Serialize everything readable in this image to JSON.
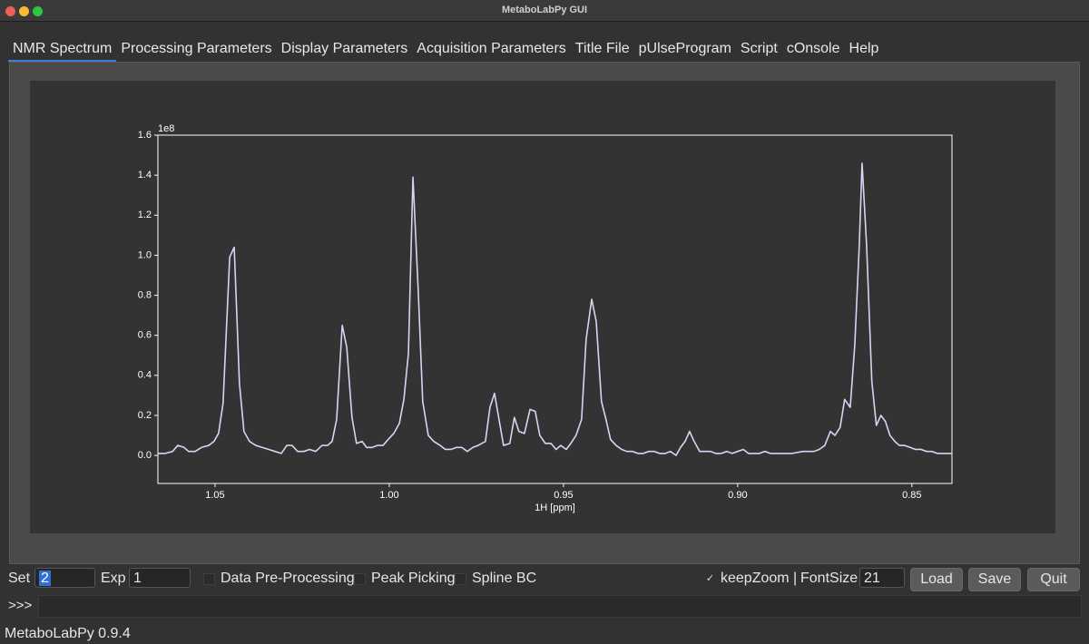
{
  "window": {
    "title": "MetaboLabPy GUI"
  },
  "tabs": [
    "NMR Spectrum",
    "Processing Parameters",
    "Display Parameters",
    "Acquisition Parameters",
    "Title File",
    "pUlseProgram",
    "Script",
    "cOnsole",
    "Help"
  ],
  "chart_data": {
    "type": "line",
    "xlabel": "1H [ppm]",
    "y_offset_label": "1e8",
    "color": "#d8d4f4",
    "axis_color": "#ffffff",
    "xlim": [
      1.0664,
      0.8385
    ],
    "ylim": [
      -0.14,
      1.6
    ],
    "xticks": [
      1.05,
      {
        "value": 1.0,
        "label": "1.00"
      },
      0.95,
      {
        "value": 0.9,
        "label": "0.90"
      },
      0.85
    ],
    "yticks": [
      {
        "value": 0,
        "label": "0.0"
      },
      0.2,
      0.4,
      0.6,
      0.8,
      {
        "value": 1.0,
        "label": "1.0"
      },
      1.2,
      1.4,
      1.6
    ],
    "x": [
      1.0664,
      1.0643,
      1.0622,
      1.0607,
      1.0589,
      1.0576,
      1.0557,
      1.0539,
      1.0518,
      1.0503,
      1.049,
      1.0477,
      1.0458,
      1.0445,
      1.043,
      1.0417,
      1.0401,
      1.0383,
      1.0365,
      1.0346,
      1.0328,
      1.031,
      1.0294,
      1.0279,
      1.0263,
      1.0245,
      1.0229,
      1.0211,
      1.0193,
      1.0177,
      1.0164,
      1.0151,
      1.0135,
      1.0122,
      1.0107,
      1.0094,
      1.0078,
      1.0065,
      1.0049,
      1.0034,
      1.0018,
      1.0003,
      0.9987,
      0.9971,
      0.9958,
      0.9945,
      0.9932,
      0.9917,
      0.9904,
      0.9888,
      0.9872,
      0.9854,
      0.9839,
      0.9823,
      0.9807,
      0.9792,
      0.9776,
      0.976,
      0.9745,
      0.9724,
      0.9711,
      0.9698,
      0.9685,
      0.9672,
      0.9654,
      0.9641,
      0.9628,
      0.9612,
      0.9596,
      0.9581,
      0.9568,
      0.9552,
      0.9536,
      0.9521,
      0.9508,
      0.9492,
      0.9479,
      0.9464,
      0.9448,
      0.9435,
      0.9419,
      0.9406,
      0.9391,
      0.9378,
      0.9365,
      0.9349,
      0.9333,
      0.9318,
      0.9302,
      0.9286,
      0.9271,
      0.9255,
      0.924,
      0.9224,
      0.9208,
      0.9193,
      0.9177,
      0.9164,
      0.9151,
      0.9138,
      0.9125,
      0.9109,
      0.9094,
      0.9078,
      0.9063,
      0.9047,
      0.9031,
      0.9016,
      0.9,
      0.8984,
      0.8969,
      0.8953,
      0.8938,
      0.8922,
      0.8906,
      0.8875,
      0.8844,
      0.8813,
      0.8781,
      0.8766,
      0.875,
      0.8734,
      0.8721,
      0.8706,
      0.8693,
      0.8677,
      0.8664,
      0.8651,
      0.8643,
      0.863,
      0.8615,
      0.8602,
      0.8589,
      0.8576,
      0.8563,
      0.8549,
      0.8536,
      0.8521,
      0.8505,
      0.849,
      0.8474,
      0.8458,
      0.8443,
      0.8427,
      0.8409,
      0.8385
    ],
    "values": [
      0.01,
      0.01,
      0.02,
      0.05,
      0.04,
      0.02,
      0.02,
      0.04,
      0.05,
      0.07,
      0.11,
      0.26,
      0.99,
      1.04,
      0.36,
      0.12,
      0.07,
      0.05,
      0.04,
      0.03,
      0.02,
      0.01,
      0.05,
      0.05,
      0.02,
      0.02,
      0.03,
      0.02,
      0.05,
      0.05,
      0.07,
      0.18,
      0.65,
      0.54,
      0.19,
      0.06,
      0.07,
      0.04,
      0.04,
      0.05,
      0.05,
      0.08,
      0.11,
      0.16,
      0.28,
      0.51,
      1.39,
      0.83,
      0.27,
      0.1,
      0.07,
      0.05,
      0.03,
      0.03,
      0.04,
      0.04,
      0.02,
      0.04,
      0.05,
      0.07,
      0.24,
      0.31,
      0.18,
      0.05,
      0.06,
      0.19,
      0.12,
      0.11,
      0.23,
      0.22,
      0.1,
      0.06,
      0.06,
      0.03,
      0.05,
      0.03,
      0.06,
      0.1,
      0.18,
      0.58,
      0.78,
      0.67,
      0.27,
      0.18,
      0.08,
      0.05,
      0.03,
      0.02,
      0.02,
      0.01,
      0.01,
      0.02,
      0.02,
      0.01,
      0.01,
      0.02,
      0,
      0.04,
      0.07,
      0.12,
      0.07,
      0.02,
      0.02,
      0.02,
      0.01,
      0.01,
      0.02,
      0.01,
      0.02,
      0.03,
      0.01,
      0.01,
      0.01,
      0.02,
      0.01,
      0.01,
      0.01,
      0.02,
      0.02,
      0.03,
      0.05,
      0.12,
      0.1,
      0.14,
      0.28,
      0.24,
      0.55,
      1.05,
      1.46,
      1.05,
      0.37,
      0.15,
      0.2,
      0.17,
      0.1,
      0.07,
      0.05,
      0.05,
      0.04,
      0.03,
      0.03,
      0.02,
      0.02,
      0.01,
      0.01,
      0.01
    ]
  },
  "controls": {
    "set_label": "Set",
    "set_value": "2",
    "exp_label": "Exp",
    "exp_value": "1",
    "checkboxes": [
      {
        "label": "Data Pre-Processing",
        "checked": false
      },
      {
        "label": "Peak Picking",
        "checked": false
      },
      {
        "label": "Spline BC",
        "checked": false
      },
      {
        "label": "keepZoom |",
        "checked": true
      }
    ],
    "fontsize_label": "FontSize",
    "fontsize_value": "21",
    "buttons": [
      "Load",
      "Save",
      "Quit"
    ]
  },
  "console": {
    "prompt": ">>>"
  },
  "status": "MetaboLabPy 0.9.4"
}
